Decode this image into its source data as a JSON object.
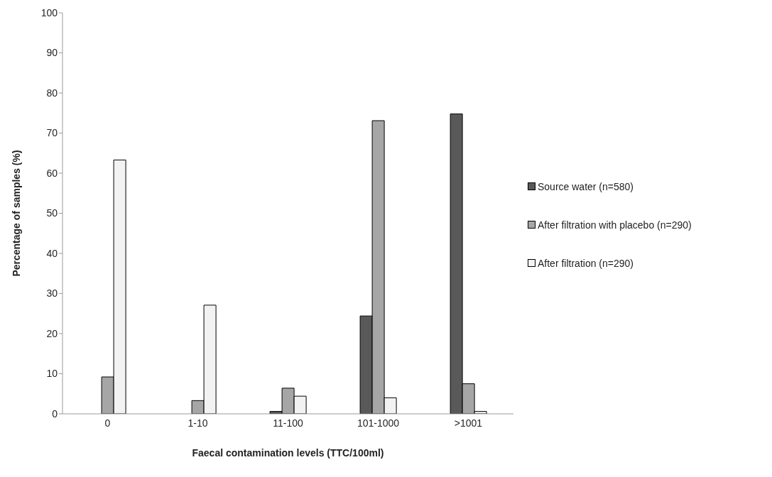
{
  "chart_data": {
    "type": "bar",
    "xlabel": "Faecal contamination levels (TTC/100ml)",
    "ylabel": "Percentage of samples (%)",
    "categories": [
      "0",
      "1-10",
      "11-100",
      "101-1000",
      ">1001"
    ],
    "series": [
      {
        "name": "Source water (n=580)",
        "color": "#595959",
        "values": [
          0,
          0,
          0.6,
          24.4,
          74.8
        ]
      },
      {
        "name": "After filtration with placebo (n=290)",
        "color": "#a6a6a6",
        "values": [
          9.2,
          3.3,
          6.4,
          73.1,
          7.5
        ]
      },
      {
        "name": "After filtration (n=290)",
        "color": "#f2f2f2",
        "values": [
          63.3,
          27.1,
          4.4,
          4.0,
          0.6
        ]
      }
    ],
    "ylim": [
      0,
      100
    ],
    "yticks": [
      0,
      10,
      20,
      30,
      40,
      50,
      60,
      70,
      80,
      90,
      100
    ],
    "grid": false,
    "legend": "right"
  }
}
